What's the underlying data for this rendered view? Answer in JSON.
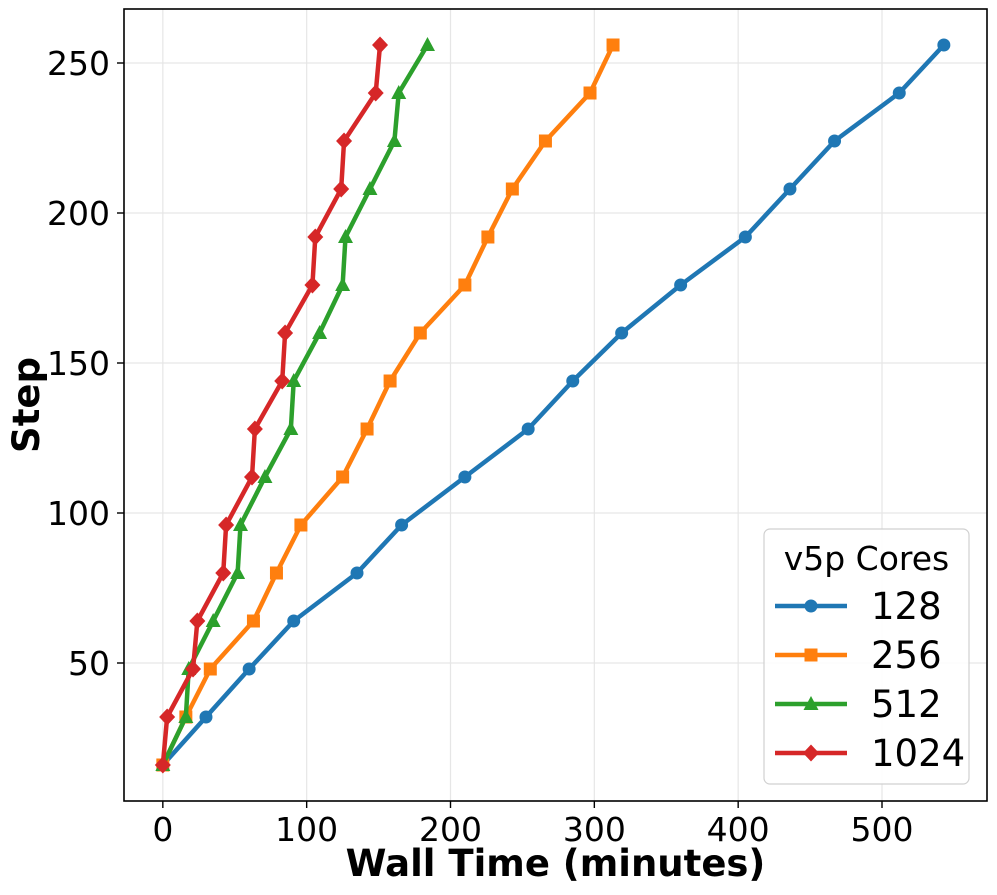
{
  "chart_data": {
    "type": "line",
    "title": "",
    "xlabel": "Wall Time (minutes)",
    "ylabel": "Step",
    "xlim": [
      -27,
      573
    ],
    "ylim": [
      4,
      268
    ],
    "xticks": [
      0,
      100,
      200,
      300,
      400,
      500
    ],
    "yticks": [
      50,
      100,
      150,
      200,
      250
    ],
    "grid": true,
    "legend": {
      "title": "v5p Cores",
      "placement": "bottom-right"
    },
    "series": [
      {
        "name": "128",
        "color": "#1f77b4",
        "marker": "circle",
        "x": [
          0,
          30,
          60,
          91,
          135,
          166,
          210,
          254,
          285,
          319,
          360,
          405,
          436,
          467,
          512,
          543
        ],
        "y": [
          16,
          32,
          48,
          64,
          80,
          96,
          112,
          128,
          144,
          160,
          176,
          192,
          208,
          224,
          240,
          256
        ]
      },
      {
        "name": "256",
        "color": "#ff7f0e",
        "marker": "square",
        "x": [
          0,
          16,
          33,
          63,
          79,
          96,
          125,
          142,
          158,
          179,
          210,
          226,
          243,
          266,
          297,
          313
        ],
        "y": [
          16,
          32,
          48,
          64,
          80,
          96,
          112,
          128,
          144,
          160,
          176,
          192,
          208,
          224,
          240,
          256
        ]
      },
      {
        "name": "512",
        "color": "#2ca02c",
        "marker": "triangle",
        "x": [
          0,
          16,
          18,
          35,
          52,
          54,
          71,
          89,
          91,
          109,
          125,
          127,
          144,
          161,
          164,
          184
        ],
        "y": [
          16,
          32,
          48,
          64,
          80,
          96,
          112,
          128,
          144,
          160,
          176,
          192,
          208,
          224,
          240,
          256
        ]
      },
      {
        "name": "1024",
        "color": "#d62728",
        "marker": "diamond",
        "x": [
          0,
          3,
          21,
          24,
          42,
          44,
          62,
          64,
          83,
          85,
          104,
          106,
          124,
          126,
          148,
          151
        ],
        "y": [
          16,
          32,
          48,
          64,
          80,
          96,
          112,
          128,
          144,
          160,
          176,
          192,
          208,
          224,
          240,
          256
        ]
      }
    ]
  }
}
